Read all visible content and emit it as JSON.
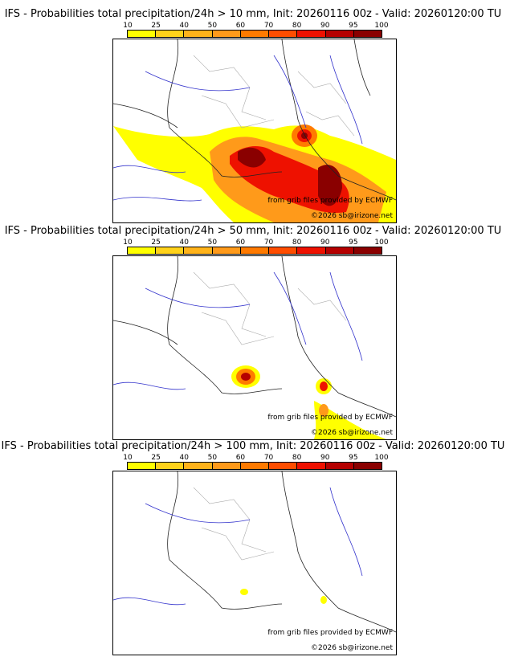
{
  "colorbar": {
    "ticks": [
      "10",
      "25",
      "40",
      "50",
      "60",
      "70",
      "80",
      "90",
      "95",
      "100"
    ],
    "colors": [
      "#ffff00",
      "#ffd21a",
      "#ffb31a",
      "#ff9a1a",
      "#ff7a00",
      "#ff4d00",
      "#ee1100",
      "#b50000",
      "#8a0000",
      "#5a0000"
    ]
  },
  "panels": [
    {
      "title": "IFS - Probabilities total precipitation/24h > 10 mm, Init: 20260116 00z - Valid: 20260120:00 TU",
      "credit_source": "from grib files provided by ECMWF",
      "credit_copyright": "©2026 sb@irizone.net"
    },
    {
      "title": "IFS - Probabilities total precipitation/24h > 50 mm, Init: 20260116 00z - Valid: 20260120:00 TU",
      "credit_source": "from grib files provided by ECMWF",
      "credit_copyright": "©2026 sb@irizone.net"
    },
    {
      "title": "IFS - Probabilities total precipitation/24h > 100 mm, Init: 20260116 00z - Valid: 20260120:00 TU",
      "credit_source": "from grib files provided by ECMWF",
      "credit_copyright": "©2026 sb@irizone.net"
    }
  ]
}
